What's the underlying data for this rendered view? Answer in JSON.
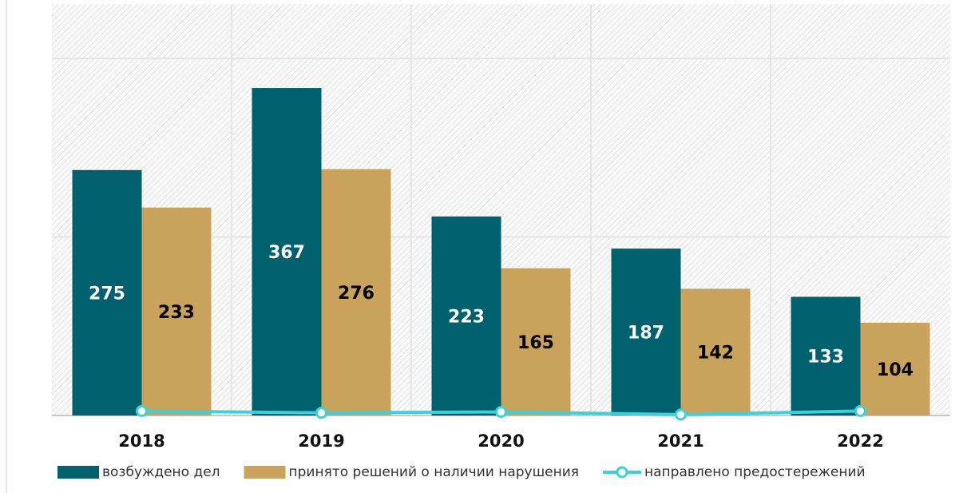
{
  "chart_data": {
    "type": "bar",
    "categories": [
      "2018",
      "2019",
      "2020",
      "2021",
      "2022"
    ],
    "series": [
      {
        "name": "возбуждено дел",
        "color": "#00606e",
        "label_color": "#ffffff",
        "values": [
          275,
          367,
          223,
          187,
          133
        ]
      },
      {
        "name": "принято решений о наличии нарушения",
        "color": "#c9a35c",
        "label_color": "#000000",
        "values": [
          233,
          276,
          165,
          142,
          104
        ]
      },
      {
        "name": "направлено предостережений",
        "type": "line",
        "color": "#3fd0dc",
        "values": [
          5,
          3,
          4,
          1,
          5
        ]
      }
    ],
    "ylim": [
      0,
      460
    ],
    "yticks": [
      0,
      200,
      400
    ],
    "grid": true,
    "legend": "bottom"
  }
}
